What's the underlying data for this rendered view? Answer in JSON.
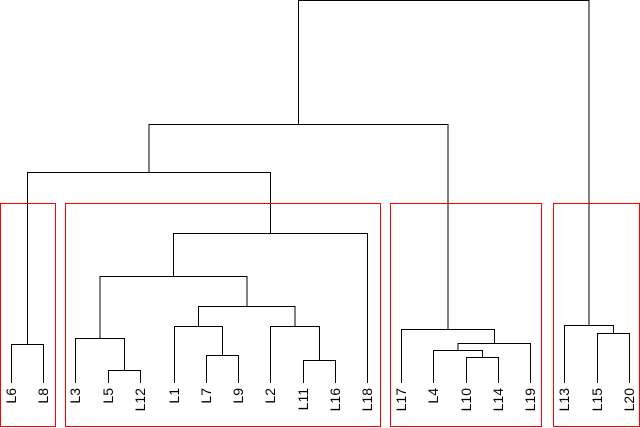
{
  "diagram": {
    "type": "dendrogram",
    "leaves": [
      "L6",
      "L8",
      "L3",
      "L5",
      "L12",
      "L1",
      "L7",
      "L9",
      "L2",
      "L11",
      "L16",
      "L18",
      "L17",
      "L4",
      "L10",
      "L14",
      "L19",
      "L13",
      "L15",
      "L20"
    ],
    "cluster_groups": [
      [
        "L6",
        "L8"
      ],
      [
        "L3",
        "L5",
        "L12",
        "L1",
        "L7",
        "L9",
        "L2",
        "L11",
        "L16",
        "L18"
      ],
      [
        "L17",
        "L4",
        "L10",
        "L14",
        "L19"
      ],
      [
        "L13",
        "L15",
        "L20"
      ]
    ],
    "branch_color": "#000000",
    "cluster_box_color": "#ff0000"
  }
}
